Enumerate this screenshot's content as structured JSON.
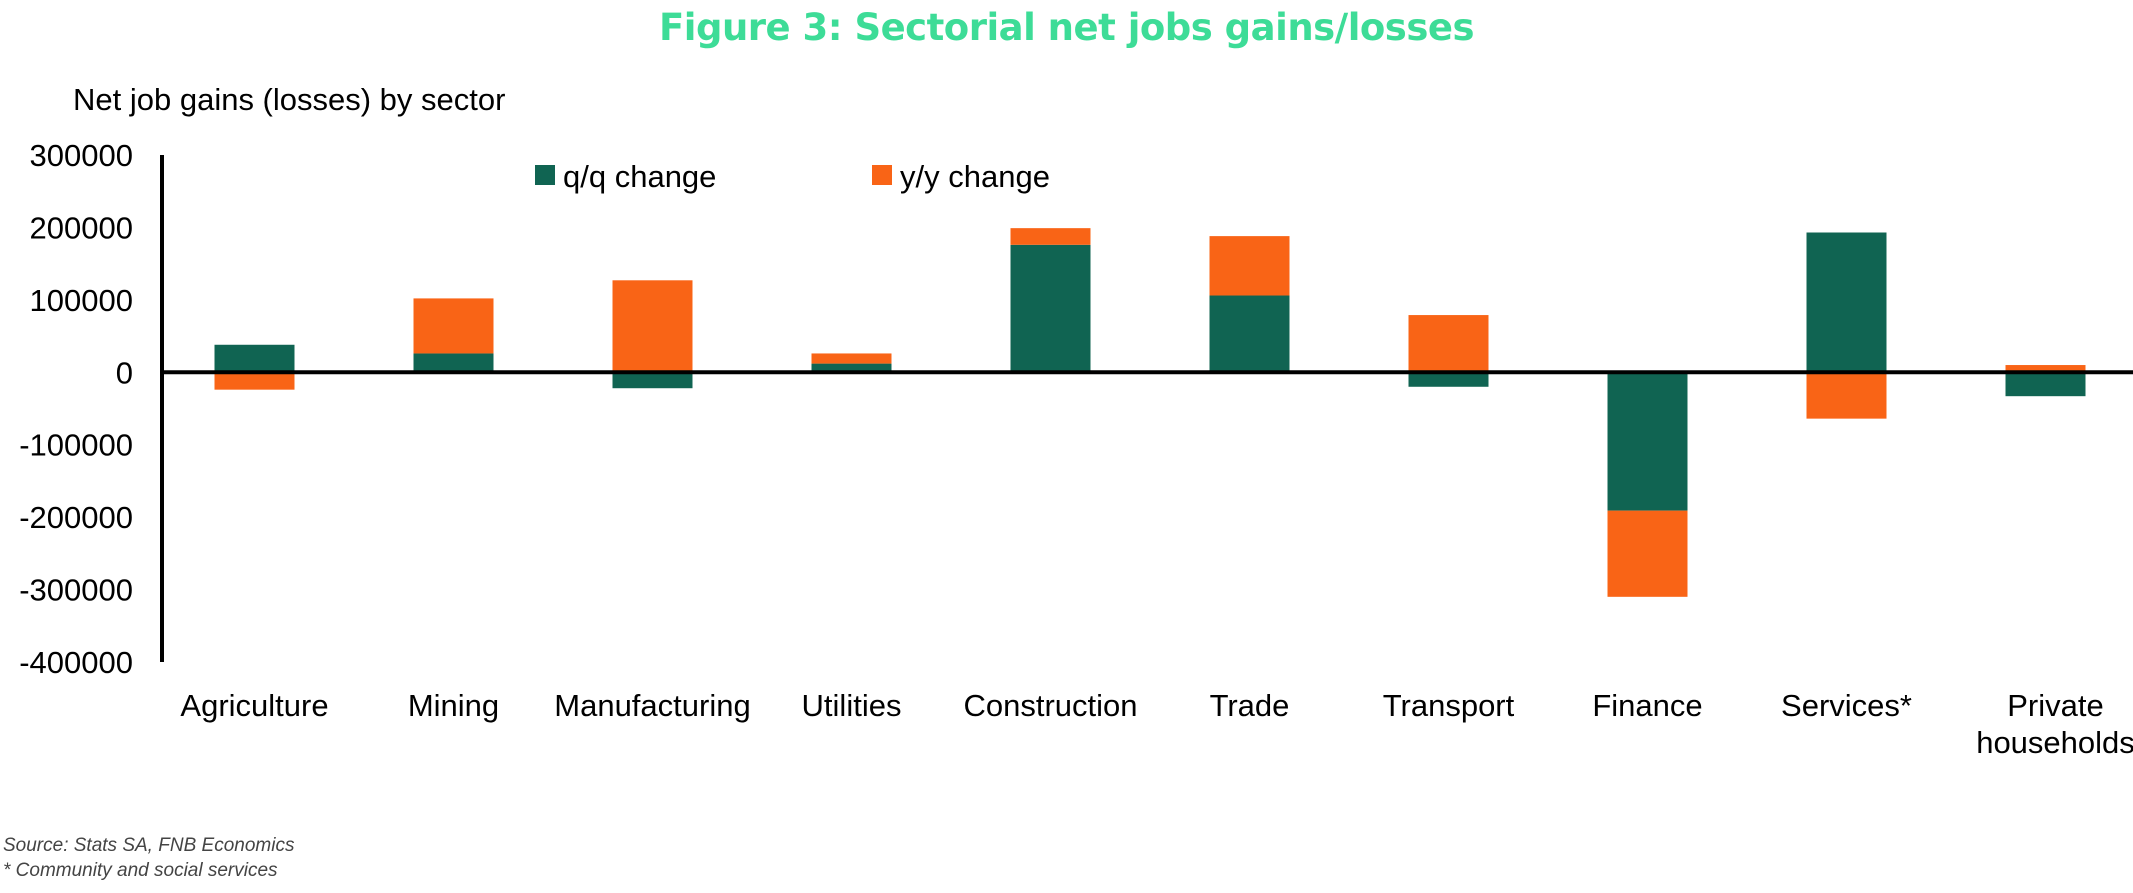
{
  "title": "Figure 3: Sectorial net jobs gains/losses",
  "footnotes": {
    "source": "Source: Stats SA, FNB Economics",
    "note": "* Community and social services"
  },
  "colors": {
    "title": "#3ddc97",
    "qq": "#106452",
    "yy": "#f96416",
    "axis": "#000000"
  },
  "chart_data": {
    "type": "bar",
    "stacked": true,
    "ylabel": "Net job gains (losses) by sector",
    "ylim": [
      -400000,
      300000
    ],
    "yticks": [
      300000,
      200000,
      100000,
      0,
      -100000,
      -200000,
      -300000,
      -400000
    ],
    "grid": false,
    "legend_position": "top",
    "categories": [
      "Agriculture",
      "Mining",
      "Manufacturing",
      "Utilities",
      "Construction",
      "Trade",
      "Transport",
      "Finance",
      "Services*",
      "Private households"
    ],
    "series": [
      {
        "name": "q/q change",
        "color": "#106452",
        "values": [
          38000,
          26000,
          -22000,
          12000,
          176000,
          106000,
          -20000,
          -191000,
          193000,
          -33000
        ]
      },
      {
        "name": "y/y change",
        "color": "#f96416",
        "values": [
          -24000,
          76000,
          127000,
          14000,
          23000,
          82000,
          79000,
          -119000,
          -64000,
          10000
        ]
      }
    ]
  }
}
